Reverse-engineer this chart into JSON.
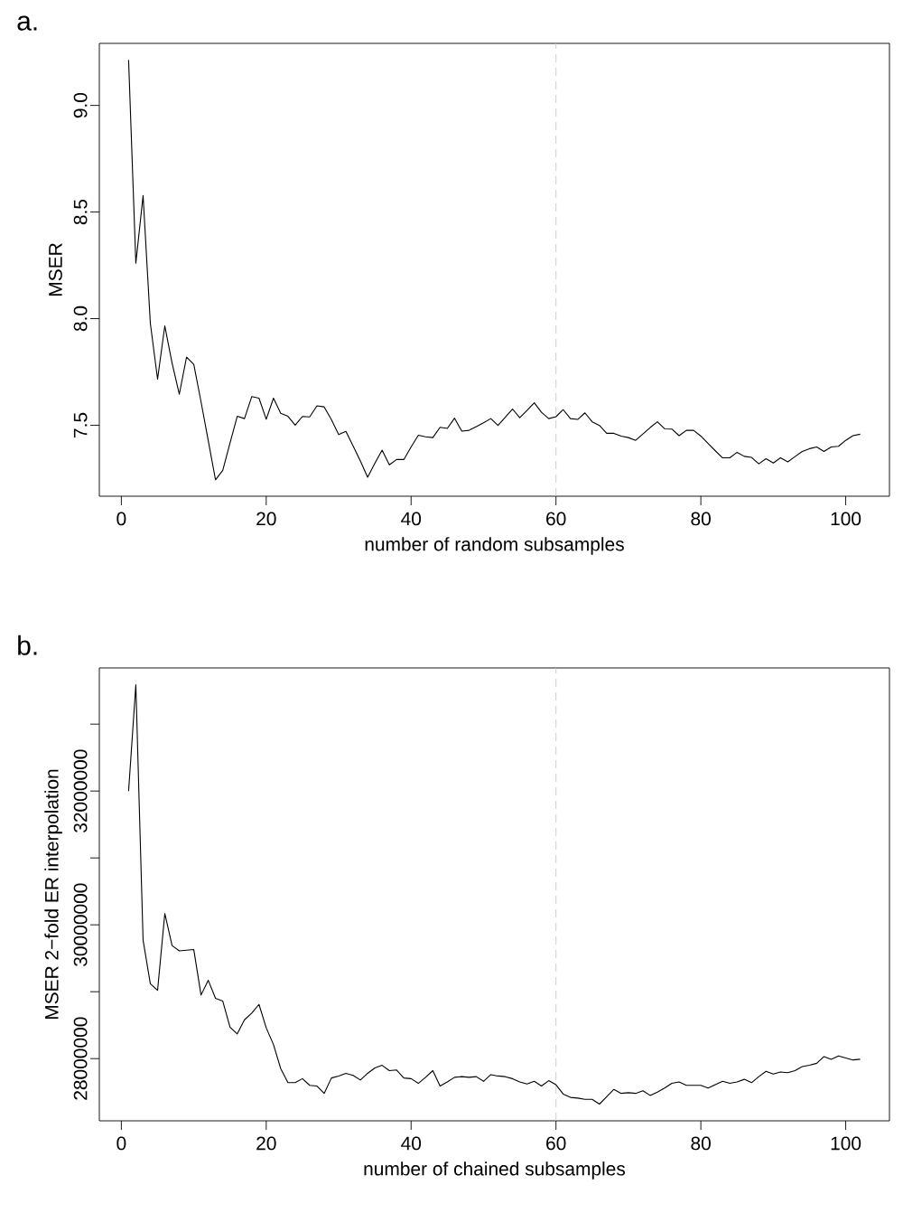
{
  "chart_data": [
    {
      "type": "line",
      "title": "a.",
      "xlabel": "number of random subsamples",
      "ylabel": "MSER",
      "x": [
        1,
        2,
        3,
        4,
        5,
        6,
        7,
        8,
        9,
        10,
        11,
        12,
        13,
        14,
        15,
        16,
        17,
        18,
        19,
        20,
        21,
        22,
        23,
        24,
        25,
        26,
        27,
        28,
        29,
        30,
        31,
        32,
        33,
        34,
        35,
        36,
        37,
        38,
        39,
        40,
        41,
        42,
        43,
        44,
        45,
        46,
        47,
        48,
        49,
        50,
        51,
        52,
        53,
        54,
        55,
        56,
        57,
        58,
        59,
        60,
        61,
        62,
        63,
        64,
        65,
        66,
        67,
        68,
        69,
        70,
        71,
        72,
        73,
        74,
        75,
        76,
        77,
        78,
        79,
        80,
        81,
        82,
        83,
        84,
        85,
        86,
        87,
        88,
        89,
        90,
        91,
        92,
        93,
        94,
        95,
        96,
        97,
        98,
        99,
        100,
        101,
        102
      ],
      "series": [
        {
          "color": "#000000",
          "values": [
            9.213,
            8.26,
            8.577,
            7.979,
            7.716,
            7.966,
            7.792,
            7.645,
            7.819,
            7.785,
            7.61,
            7.427,
            7.244,
            7.288,
            7.417,
            7.542,
            7.531,
            7.634,
            7.627,
            7.528,
            7.627,
            7.556,
            7.542,
            7.5,
            7.541,
            7.539,
            7.591,
            7.586,
            7.526,
            7.456,
            7.471,
            7.402,
            7.332,
            7.256,
            7.322,
            7.383,
            7.314,
            7.339,
            7.339,
            7.398,
            7.453,
            7.446,
            7.442,
            7.49,
            7.485,
            7.533,
            7.472,
            7.476,
            7.493,
            7.511,
            7.531,
            7.499,
            7.537,
            7.576,
            7.535,
            7.569,
            7.605,
            7.561,
            7.531,
            7.54,
            7.573,
            7.531,
            7.527,
            7.558,
            7.516,
            7.499,
            7.462,
            7.462,
            7.449,
            7.442,
            7.429,
            7.459,
            7.489,
            7.516,
            7.483,
            7.482,
            7.451,
            7.476,
            7.476,
            7.449,
            7.414,
            7.38,
            7.347,
            7.347,
            7.373,
            7.354,
            7.349,
            7.319,
            7.343,
            7.323,
            7.347,
            7.328,
            7.353,
            7.377,
            7.39,
            7.398,
            7.377,
            7.398,
            7.401,
            7.429,
            7.451,
            7.458
          ]
        }
      ],
      "xlim": [
        -3.04,
        106.04
      ],
      "xticks": [
        0,
        20,
        40,
        60,
        80,
        100
      ],
      "ylim": [
        7.167,
        9.291
      ],
      "yticks": [
        7.5,
        {
          "value": 8.0,
          "label": "8.0"
        },
        8.5,
        {
          "value": 9.0,
          "label": "9.0"
        }
      ],
      "ref_lines": [
        {
          "axis": "x",
          "value": 60,
          "color": "#c8c8c8",
          "line_style": "dashed"
        }
      ],
      "line_style": "solid",
      "grid": false
    },
    {
      "type": "line",
      "title": "b.",
      "xlabel": "number of chained subsamples",
      "ylabel": "MSER 2−fold ER interpolation",
      "x": [
        1,
        2,
        3,
        4,
        5,
        6,
        7,
        8,
        9,
        10,
        11,
        12,
        13,
        14,
        15,
        16,
        17,
        18,
        19,
        20,
        21,
        22,
        23,
        24,
        25,
        26,
        27,
        28,
        29,
        30,
        31,
        32,
        33,
        34,
        35,
        36,
        37,
        38,
        39,
        40,
        41,
        42,
        43,
        44,
        45,
        46,
        47,
        48,
        49,
        50,
        51,
        52,
        53,
        54,
        55,
        56,
        57,
        58,
        59,
        60,
        61,
        62,
        63,
        64,
        65,
        66,
        67,
        68,
        69,
        70,
        71,
        72,
        73,
        74,
        75,
        76,
        77,
        78,
        79,
        80,
        81,
        82,
        83,
        84,
        85,
        86,
        87,
        88,
        89,
        90,
        91,
        92,
        93,
        94,
        95,
        96,
        97,
        98,
        99,
        100,
        101,
        102
      ],
      "series": [
        {
          "color": "#000000",
          "values": [
            32000000,
            33590000,
            29770000,
            29120000,
            29020000,
            30170000,
            29690000,
            29610000,
            29620000,
            29630000,
            28950000,
            29170000,
            28900000,
            28860000,
            28470000,
            28370000,
            28580000,
            28680000,
            28810000,
            28460000,
            28210000,
            27850000,
            27640000,
            27640000,
            27700000,
            27600000,
            27590000,
            27480000,
            27710000,
            27740000,
            27780000,
            27750000,
            27680000,
            27780000,
            27860000,
            27900000,
            27820000,
            27830000,
            27710000,
            27700000,
            27630000,
            27720000,
            27820000,
            27590000,
            27650000,
            27720000,
            27730000,
            27720000,
            27730000,
            27660000,
            27760000,
            27740000,
            27730000,
            27700000,
            27650000,
            27620000,
            27660000,
            27590000,
            27670000,
            27610000,
            27470000,
            27420000,
            27410000,
            27390000,
            27390000,
            27320000,
            27430000,
            27540000,
            27480000,
            27490000,
            27480000,
            27520000,
            27450000,
            27500000,
            27560000,
            27630000,
            27650000,
            27600000,
            27600000,
            27600000,
            27560000,
            27610000,
            27660000,
            27630000,
            27650000,
            27690000,
            27640000,
            27730000,
            27810000,
            27770000,
            27800000,
            27790000,
            27820000,
            27880000,
            27900000,
            27930000,
            28030000,
            27990000,
            28040000,
            28010000,
            27980000,
            27990000
          ]
        }
      ],
      "xlim": [
        -3.04,
        106.04
      ],
      "xticks": [
        0,
        20,
        40,
        60,
        80,
        100
      ],
      "ylim": [
        27070000,
        33840000
      ],
      "yticks": [
        28000000,
        {
          "value": 29000000,
          "label": null
        },
        30000000,
        {
          "value": 31000000,
          "label": null
        },
        32000000,
        {
          "value": 33000000,
          "label": null
        }
      ],
      "ref_lines": [
        {
          "axis": "x",
          "value": 60,
          "color": "#c8c8c8",
          "line_style": "dashed"
        }
      ],
      "line_style": "solid",
      "grid": false
    }
  ]
}
